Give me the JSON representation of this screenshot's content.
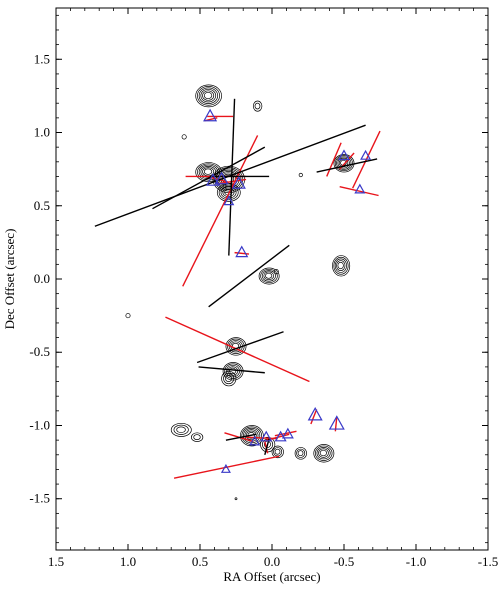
{
  "chart_data": {
    "type": "scatter",
    "title": "",
    "xlabel": "RA Offset (arcsec)",
    "ylabel": "Dec Offset (arcsec)",
    "xlim": [
      1.5,
      -1.5
    ],
    "ylim": [
      -1.85,
      1.85
    ],
    "xticks": [
      1.5,
      1.0,
      0.5,
      0.0,
      -0.5,
      -1.0,
      -1.5
    ],
    "xtick_labels": [
      "1.5",
      "1.0",
      "0.5",
      "0.0",
      "-0.5",
      "-1.0",
      "-1.5"
    ],
    "yticks": [
      1.5,
      1.0,
      0.5,
      0.0,
      -0.5,
      -1.0,
      -1.5
    ],
    "ytick_labels": [
      "1.5",
      "1.0",
      "0.5",
      "0.0",
      "-0.5",
      "-1.0",
      "-1.5"
    ],
    "grid": false,
    "legend": "none",
    "colors": {
      "contour": "#000000",
      "red_vector": "#e8141b",
      "black_vector": "#000000",
      "triangle": "#3a3ac8"
    },
    "contours": [
      {
        "x": 0.44,
        "y": 1.25,
        "sx": 0.09,
        "sy": 0.075,
        "n": 6
      },
      {
        "x": 0.1,
        "y": 1.18,
        "sx": 0.03,
        "sy": 0.035,
        "n": 2
      },
      {
        "x": 0.61,
        "y": 0.97,
        "sx": 0.015,
        "sy": 0.015,
        "n": 1
      },
      {
        "x": 0.44,
        "y": 0.73,
        "sx": 0.09,
        "sy": 0.065,
        "n": 6
      },
      {
        "x": 0.3,
        "y": 0.68,
        "sx": 0.11,
        "sy": 0.09,
        "n": 8
      },
      {
        "x": 0.3,
        "y": 0.59,
        "sx": 0.08,
        "sy": 0.06,
        "n": 5
      },
      {
        "x": -0.5,
        "y": 0.79,
        "sx": 0.07,
        "sy": 0.06,
        "n": 6
      },
      {
        "x": -0.2,
        "y": 0.71,
        "sx": 0.012,
        "sy": 0.012,
        "n": 1
      },
      {
        "x": 0.02,
        "y": 0.02,
        "sx": 0.07,
        "sy": 0.055,
        "n": 5
      },
      {
        "x": -0.48,
        "y": 0.09,
        "sx": 0.06,
        "sy": 0.07,
        "n": 5
      },
      {
        "x": -0.03,
        "y": 0.05,
        "sx": 0.015,
        "sy": 0.015,
        "n": 1
      },
      {
        "x": 1.0,
        "y": -0.25,
        "sx": 0.015,
        "sy": 0.015,
        "n": 1
      },
      {
        "x": 0.25,
        "y": -0.46,
        "sx": 0.07,
        "sy": 0.06,
        "n": 5
      },
      {
        "x": 0.27,
        "y": -0.63,
        "sx": 0.07,
        "sy": 0.06,
        "n": 5
      },
      {
        "x": 0.3,
        "y": -0.68,
        "sx": 0.05,
        "sy": 0.05,
        "n": 3
      },
      {
        "x": 0.63,
        "y": -1.03,
        "sx": 0.07,
        "sy": 0.045,
        "n": 3
      },
      {
        "x": 0.52,
        "y": -1.08,
        "sx": 0.04,
        "sy": 0.03,
        "n": 2
      },
      {
        "x": 0.14,
        "y": -1.07,
        "sx": 0.08,
        "sy": 0.07,
        "n": 6
      },
      {
        "x": 0.03,
        "y": -1.13,
        "sx": 0.05,
        "sy": 0.05,
        "n": 3
      },
      {
        "x": -0.04,
        "y": -1.18,
        "sx": 0.04,
        "sy": 0.04,
        "n": 3
      },
      {
        "x": -0.2,
        "y": -1.19,
        "sx": 0.04,
        "sy": 0.04,
        "n": 3
      },
      {
        "x": -0.36,
        "y": -1.19,
        "sx": 0.07,
        "sy": 0.06,
        "n": 5
      },
      {
        "x": 0.25,
        "y": -1.5,
        "sx": 0.006,
        "sy": 0.006,
        "n": 1
      }
    ],
    "red_vectors": [
      {
        "x1": 0.45,
        "y1": 1.11,
        "x2": 0.27,
        "y2": 1.11
      },
      {
        "x1": 0.47,
        "y1": 1.08,
        "x2": 0.38,
        "y2": 1.1
      },
      {
        "x1": 0.6,
        "y1": 0.7,
        "x2": 0.18,
        "y2": 0.7
      },
      {
        "x1": 0.45,
        "y1": 0.7,
        "x2": 0.3,
        "y2": 0.66
      },
      {
        "x1": 0.38,
        "y1": 0.65,
        "x2": 0.18,
        "y2": 0.68
      },
      {
        "x1": 0.62,
        "y1": -0.05,
        "x2": 0.1,
        "y2": 0.98
      },
      {
        "x1": 0.26,
        "y1": 0.18,
        "x2": 0.16,
        "y2": 0.17
      },
      {
        "x1": -0.38,
        "y1": 0.7,
        "x2": -0.48,
        "y2": 0.93
      },
      {
        "x1": -0.47,
        "y1": 0.75,
        "x2": -0.57,
        "y2": 0.86
      },
      {
        "x1": -0.56,
        "y1": 0.62,
        "x2": -0.75,
        "y2": 1.01
      },
      {
        "x1": -0.47,
        "y1": 0.63,
        "x2": -0.74,
        "y2": 0.57
      },
      {
        "x1": 0.74,
        "y1": -0.26,
        "x2": -0.26,
        "y2": -0.7
      },
      {
        "x1": 0.33,
        "y1": -1.05,
        "x2": 0.13,
        "y2": -1.11
      },
      {
        "x1": 0.18,
        "y1": -1.08,
        "x2": -0.04,
        "y2": -1.09
      },
      {
        "x1": 0.04,
        "y1": -1.1,
        "x2": -0.12,
        "y2": -1.06
      },
      {
        "x1": -0.02,
        "y1": -1.07,
        "x2": -0.17,
        "y2": -1.04
      },
      {
        "x1": 0.68,
        "y1": -1.36,
        "x2": -0.05,
        "y2": -1.21
      },
      {
        "x1": -0.31,
        "y1": -0.89,
        "x2": -0.27,
        "y2": -0.99
      },
      {
        "x1": -0.45,
        "y1": -0.94,
        "x2": -0.44,
        "y2": -1.04
      },
      {
        "x1": 0.05,
        "y1": -1.11,
        "x2": 0.03,
        "y2": -1.19
      }
    ],
    "black_vectors": [
      {
        "x1": 0.26,
        "y1": 1.23,
        "x2": 0.3,
        "y2": 0.16
      },
      {
        "x1": 0.43,
        "y1": 0.7,
        "x2": 0.02,
        "y2": 0.7
      },
      {
        "x1": 1.23,
        "y1": 0.36,
        "x2": -0.65,
        "y2": 1.05
      },
      {
        "x1": 0.83,
        "y1": 0.48,
        "x2": 0.05,
        "y2": 0.9
      },
      {
        "x1": -0.31,
        "y1": 0.73,
        "x2": -0.73,
        "y2": 0.82
      },
      {
        "x1": 0.44,
        "y1": -0.19,
        "x2": -0.12,
        "y2": 0.23
      },
      {
        "x1": 0.52,
        "y1": -0.57,
        "x2": -0.08,
        "y2": -0.36
      },
      {
        "x1": 0.51,
        "y1": -0.6,
        "x2": 0.05,
        "y2": -0.64
      },
      {
        "x1": 0.32,
        "y1": -1.1,
        "x2": 0.11,
        "y2": -1.06
      },
      {
        "x1": 0.05,
        "y1": -1.2,
        "x2": 0.02,
        "y2": -1.09
      }
    ],
    "triangles": [
      {
        "x": 0.43,
        "y": 1.11,
        "size": 12
      },
      {
        "x": 0.41,
        "y": 0.67,
        "size": 12
      },
      {
        "x": 0.35,
        "y": 0.68,
        "size": 12
      },
      {
        "x": 0.23,
        "y": 0.65,
        "size": 12
      },
      {
        "x": 0.3,
        "y": 0.53,
        "size": 9
      },
      {
        "x": 0.21,
        "y": 0.18,
        "size": 11
      },
      {
        "x": -0.5,
        "y": 0.84,
        "size": 10
      },
      {
        "x": -0.65,
        "y": 0.84,
        "size": 9
      },
      {
        "x": -0.61,
        "y": 0.61,
        "size": 9
      },
      {
        "x": 0.32,
        "y": -1.3,
        "size": 8
      },
      {
        "x": 0.12,
        "y": -1.11,
        "size": 9
      },
      {
        "x": 0.04,
        "y": -1.08,
        "size": 10
      },
      {
        "x": -0.06,
        "y": -1.08,
        "size": 10
      },
      {
        "x": -0.11,
        "y": -1.06,
        "size": 10
      },
      {
        "x": -0.3,
        "y": -0.93,
        "size": 13
      },
      {
        "x": -0.45,
        "y": -0.99,
        "size": 14
      }
    ]
  }
}
